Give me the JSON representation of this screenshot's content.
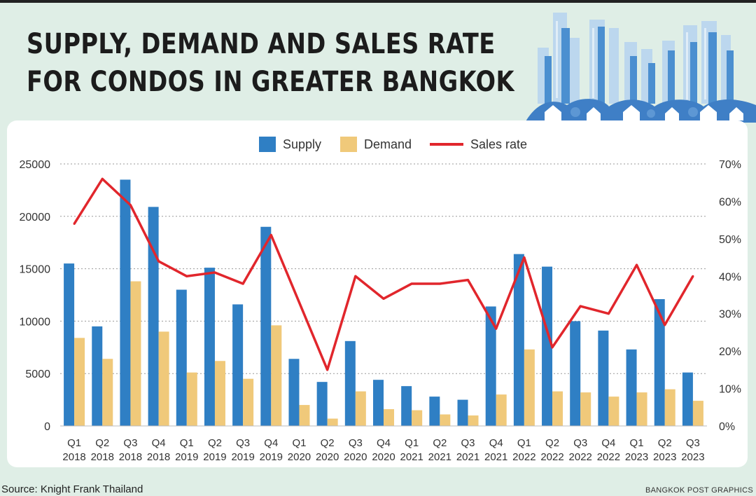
{
  "header": {
    "title_line1": "SUPPLY, DEMAND AND SALES RATE",
    "title_line2": "FOR CONDOS IN GREATER BANGKOK"
  },
  "footer": {
    "source": "Source: Knight Frank Thailand",
    "credit": "BANGKOK POST GRAPHICS"
  },
  "colors": {
    "supply": "#2f7fc4",
    "demand": "#f0c97a",
    "sales_rate": "#e1262c",
    "background": "#dfeee6"
  },
  "chart_data": {
    "type": "bar",
    "categories": [
      [
        "Q1",
        "2018"
      ],
      [
        "Q2",
        "2018"
      ],
      [
        "Q3",
        "2018"
      ],
      [
        "Q4",
        "2018"
      ],
      [
        "Q1",
        "2019"
      ],
      [
        "Q2",
        "2019"
      ],
      [
        "Q3",
        "2019"
      ],
      [
        "Q4",
        "2019"
      ],
      [
        "Q1",
        "2020"
      ],
      [
        "Q2",
        "2020"
      ],
      [
        "Q3",
        "2020"
      ],
      [
        "Q4",
        "2020"
      ],
      [
        "Q1",
        "2021"
      ],
      [
        "Q2",
        "2021"
      ],
      [
        "Q3",
        "2021"
      ],
      [
        "Q4",
        "2021"
      ],
      [
        "Q1",
        "2022"
      ],
      [
        "Q2",
        "2022"
      ],
      [
        "Q3",
        "2022"
      ],
      [
        "Q4",
        "2022"
      ],
      [
        "Q1",
        "2023"
      ],
      [
        "Q2",
        "2023"
      ],
      [
        "Q3",
        "2023"
      ]
    ],
    "series": [
      {
        "name": "Supply",
        "kind": "bar",
        "axis": "left",
        "values": [
          15500,
          9500,
          23500,
          20900,
          13000,
          15100,
          11600,
          19000,
          6400,
          4200,
          8100,
          4400,
          3800,
          2800,
          2500,
          11400,
          16400,
          15200,
          10000,
          9100,
          7300,
          12100,
          5100
        ]
      },
      {
        "name": "Demand",
        "kind": "bar",
        "axis": "left",
        "values": [
          8400,
          6400,
          13800,
          9000,
          5100,
          6200,
          4500,
          9600,
          2000,
          700,
          3300,
          1600,
          1500,
          1100,
          1000,
          3000,
          7300,
          3300,
          3200,
          2800,
          3200,
          3500,
          2400
        ]
      },
      {
        "name": "Sales rate",
        "kind": "line",
        "axis": "right",
        "values": [
          54,
          66,
          59,
          44,
          40,
          41,
          38,
          51,
          33,
          15,
          40,
          34,
          38,
          38,
          39,
          26,
          45,
          21,
          32,
          30,
          43,
          27,
          40
        ]
      }
    ],
    "y_left": {
      "min": 0,
      "max": 25000,
      "ticks": [
        "0",
        "5000",
        "10000",
        "15000",
        "20000",
        "25000"
      ]
    },
    "y_right": {
      "min": 0,
      "max": 70,
      "ticks": [
        "0%",
        "10%",
        "20%",
        "30%",
        "40%",
        "50%",
        "60%",
        "70%"
      ]
    },
    "grid": "horizontal-dotted",
    "legend": "top-center"
  }
}
